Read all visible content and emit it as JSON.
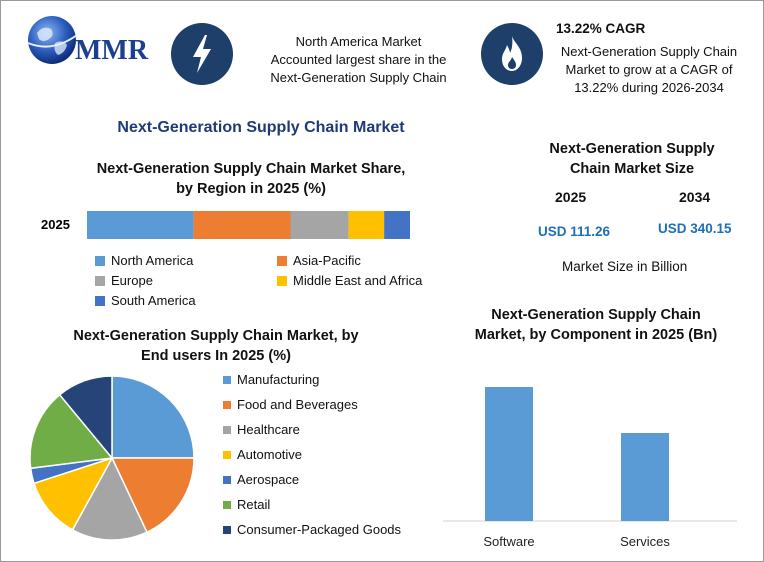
{
  "brand": {
    "logo_text": "MMR"
  },
  "callouts": {
    "share": {
      "icon": "lightning-bolt-icon",
      "text_lines": [
        "North America Market",
        "Accounted largest share in the",
        "Next-Generation Supply Chain"
      ]
    },
    "cagr": {
      "icon": "flame-icon",
      "heading": "13.22% CAGR",
      "text_lines": [
        "Next-Generation Supply Chain",
        "Market to grow at a CAGR of",
        "13.22% during 2026-2034"
      ]
    }
  },
  "main_title": "Next-Generation Supply Chain Market",
  "market_size": {
    "title_lines": [
      "Next-Generation Supply",
      "Chain Market Size"
    ],
    "year_1": "2025",
    "year_2": "2034",
    "value_1": "USD 111.26",
    "value_2": "USD 340.15",
    "note": "Market Size in Billion"
  },
  "colors": {
    "blue": "#5b9bd5",
    "orange": "#ed7d31",
    "gray": "#a5a5a5",
    "yellow": "#ffc000",
    "dark_blue": "#4472c4",
    "green": "#70ad47",
    "navy": "#264478",
    "dark_navy": "#1d3f6a",
    "title_blue": "#1e3a78",
    "value_blue": "#1f6fb5"
  },
  "chart_data": [
    {
      "type": "bar",
      "orientation": "horizontal-stacked",
      "title_lines": [
        "Next-Generation Supply Chain Market Share,",
        "by Region in 2025 (%)"
      ],
      "categories": [
        "2025"
      ],
      "series": [
        {
          "name": "North America",
          "values": [
            33
          ],
          "color": "#5b9bd5"
        },
        {
          "name": "Asia-Pacific",
          "values": [
            30
          ],
          "color": "#ed7d31"
        },
        {
          "name": "Europe",
          "values": [
            18
          ],
          "color": "#a5a5a5"
        },
        {
          "name": "Middle East and Africa",
          "values": [
            11
          ],
          "color": "#ffc000"
        },
        {
          "name": "South America",
          "values": [
            8
          ],
          "color": "#4472c4"
        }
      ],
      "legend_position": "bottom"
    },
    {
      "type": "pie",
      "title_lines": [
        "Next-Generation Supply Chain Market, by",
        "End users In 2025 (%)"
      ],
      "slices": [
        {
          "label": "Manufacturing",
          "value": 25,
          "color": "#5b9bd5"
        },
        {
          "label": "Food and Beverages",
          "value": 18,
          "color": "#ed7d31"
        },
        {
          "label": "Healthcare",
          "value": 15,
          "color": "#a5a5a5"
        },
        {
          "label": "Automotive",
          "value": 12,
          "color": "#ffc000"
        },
        {
          "label": "Aerospace",
          "value": 3,
          "color": "#4472c4"
        },
        {
          "label": "Retail",
          "value": 16,
          "color": "#70ad47"
        },
        {
          "label": "Consumer-Packaged Goods",
          "value": 11,
          "color": "#264478"
        }
      ],
      "legend_position": "right"
    },
    {
      "type": "bar",
      "title_lines": [
        "Next-Generation Supply Chain",
        "Market, by Component in 2025 (Bn)"
      ],
      "categories": [
        "Software",
        "Services"
      ],
      "values": [
        67,
        44
      ],
      "ylim": [
        0,
        80
      ],
      "color": "#5b9bd5"
    }
  ]
}
